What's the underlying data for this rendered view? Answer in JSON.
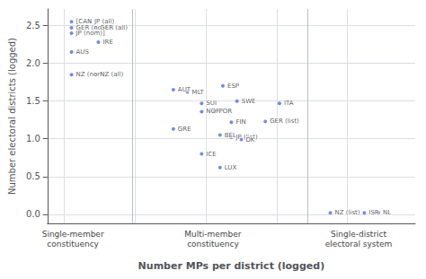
{
  "chart_data": {
    "type": "scatter",
    "xlabel": "Number MPs per district (logged)",
    "ylabel": "Number electoral districts (logged)",
    "labels": [
      "[CAN",
      "JP (all)",
      "GER (nom),",
      "GER (all)",
      "JP (nom)]",
      "IRE",
      "AUS",
      "NZ (nom)",
      "NZ (all)",
      "AUT",
      "MLT",
      "ESP",
      "SUI",
      "NOR",
      "POR",
      "GRE",
      "SWE",
      "ITA",
      "FIN",
      "GER (list)",
      "BEL",
      "JP (list)",
      "DK",
      "ICE",
      "LUX",
      "NZ (list)",
      "ISR",
      "NL"
    ],
    "x": [
      0.05,
      0.18,
      0.05,
      0.22,
      0.05,
      0.24,
      0.05,
      0.05,
      0.22,
      0.77,
      0.87,
      1.12,
      0.97,
      0.97,
      1.06,
      0.77,
      1.22,
      1.52,
      1.18,
      1.42,
      1.1,
      1.18,
      1.25,
      0.97,
      1.1,
      1.88,
      2.12,
      2.22
    ],
    "values": [
      2.55,
      2.55,
      2.47,
      2.47,
      2.4,
      2.28,
      2.15,
      1.85,
      1.85,
      1.65,
      1.62,
      1.7,
      1.47,
      1.36,
      1.36,
      1.13,
      1.5,
      1.47,
      1.22,
      1.23,
      1.05,
      1.02,
      0.99,
      0.8,
      0.62,
      0.02,
      0.02,
      0.02
    ],
    "xlim": [
      -0.12,
      2.48
    ],
    "ylim": [
      -0.12,
      2.72
    ],
    "xticks": [
      0,
      0.5,
      1,
      1.5,
      2
    ],
    "yticks": [
      {
        "value": 0,
        "label": "0.0"
      },
      0.5,
      {
        "value": 1,
        "label": "1.0"
      },
      1.5,
      {
        "value": 2,
        "label": "2.0"
      },
      2.5
    ],
    "grid": true,
    "tick_labels": "y",
    "vlines": [
      0.48,
      1.72
    ],
    "annotations": [
      {
        "text": "Single-member\nconstituency",
        "x": 0.06
      },
      {
        "text": "Multi-member\nconstituency",
        "x": 1.05
      },
      {
        "text": "Single-district\nelectoral system",
        "x": 2.08
      }
    ]
  }
}
